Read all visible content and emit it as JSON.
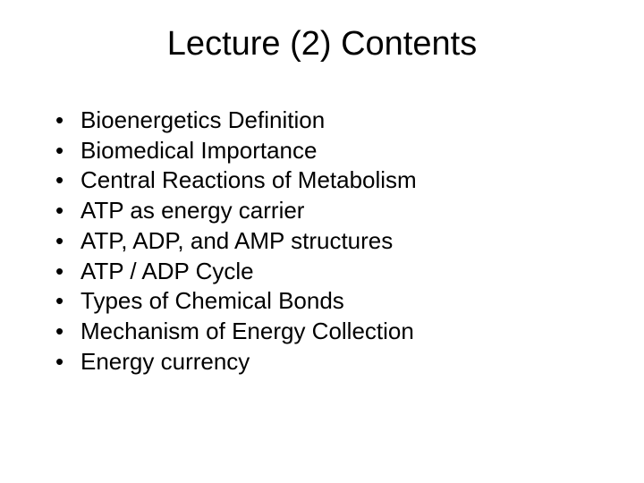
{
  "title": "Lecture (2) Contents",
  "title_fontsize": 38,
  "body_fontsize": 26,
  "background_color": "#ffffff",
  "text_color": "#000000",
  "font_family": "Arial",
  "bullets": [
    "Bioenergetics Definition",
    "Biomedical Importance",
    "Central Reactions of Metabolism",
    "ATP as energy carrier",
    "ATP, ADP, and AMP structures",
    "ATP / ADP Cycle",
    "Types of Chemical Bonds",
    "Mechanism of Energy Collection",
    "Energy currency"
  ]
}
